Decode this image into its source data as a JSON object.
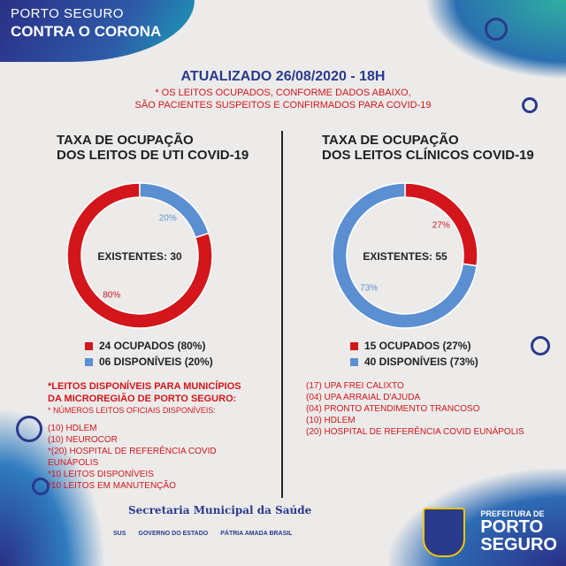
{
  "brand": {
    "line1": "PORTO SEGURO",
    "line2": "CONTRA O CORONA"
  },
  "header": {
    "updated": "ATUALIZADO 26/08/2020 - 18H",
    "note1": "* OS LEITOS OCUPADOS, CONFORME DADOS ABAIXO,",
    "note2": "SÃO PACIENTES SUSPEITOS E CONFIRMADOS PARA COVID-19"
  },
  "left": {
    "title1": "TAXA DE OCUPAÇÃO",
    "title2": "DOS LEITOS DE UTI COVID-19",
    "center_label": "EXISTENTES: 30",
    "legend": [
      "24 OCUPADOS (80%)",
      "06 DISPONÍVEIS (20%)"
    ],
    "notes_title1": "*LEITOS DISPONÍVEIS PARA MUNICÍPIOS",
    "notes_title2": "DA MICROREGIÃO DE PORTO SEGURO:",
    "notes_sub": "* NÚMEROS LEITOS OFICIAIS DISPONÍVEIS:",
    "notes": [
      "(10) HDLEM",
      "(10) NEUROCOR",
      "*(20) HOSPITAL DE REFERÊNCIA COVID EUNÁPOLIS",
      "*10 LEITOS DISPONÍVEIS",
      "*10 LEITOS EM MANUTENÇÃO"
    ]
  },
  "right": {
    "title1": "TAXA DE OCUPAÇÃO",
    "title2": "DOS LEITOS CLÍNICOS COVID-19",
    "center_label": "EXISTENTES: 55",
    "legend": [
      "15 OCUPADOS (27%)",
      "40 DISPONÍVEIS (73%)"
    ],
    "notes": [
      "(17) UPA FREI CALIXTO",
      "(04) UPA ARRAIAL D'AJUDA",
      "(04) PRONTO ATENDIMENTO TRANCOSO",
      "(10) HDLEM",
      "(20) HOSPITAL DE REFERÊNCIA COVID EUNÁPOLIS"
    ]
  },
  "footer": {
    "text": "Secretaria Municipal da Saúde"
  },
  "logos": [
    "SUS",
    "GOVERNO DO ESTADO",
    "PÁTRIA AMADA BRASIL"
  ],
  "prefeitura": {
    "line1": "PREFEITURA DE",
    "line2": "PORTO",
    "line3": "SEGURO"
  },
  "colors": {
    "occupied": "#d3161b",
    "available": "#5b8fd1",
    "navy": "#2a3a8c"
  },
  "chart_data": [
    {
      "type": "pie",
      "title": "TAXA DE OCUPAÇÃO DOS LEITOS DE UTI COVID-19",
      "slices": [
        {
          "label": "OCUPADOS",
          "value": 24,
          "percent_label": "80%"
        },
        {
          "label": "DISPONÍVEIS",
          "value": 6,
          "percent_label": "20%"
        }
      ]
    },
    {
      "type": "pie",
      "title": "TAXA DE OCUPAÇÃO DOS LEITOS CLÍNICOS COVID-19",
      "slices": [
        {
          "label": "OCUPADOS",
          "value": 15,
          "percent_label": "27%"
        },
        {
          "label": "DISPONÍVEIS",
          "value": 40,
          "percent_label": "73%"
        }
      ]
    }
  ]
}
